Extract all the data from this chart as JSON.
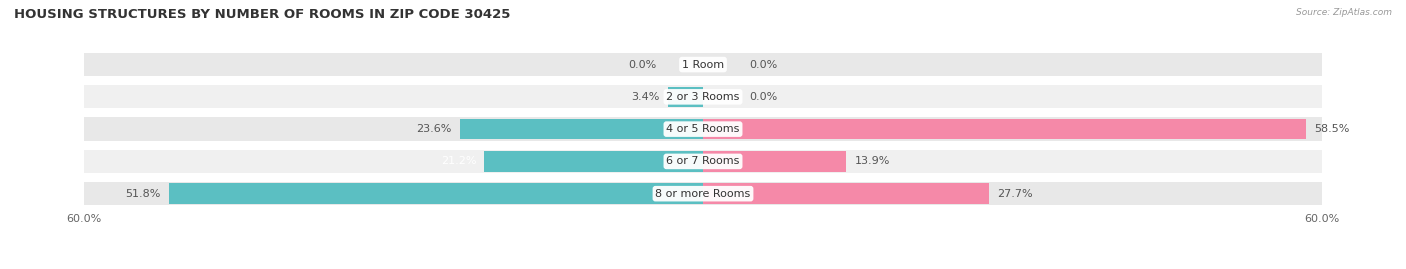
{
  "title": "HOUSING STRUCTURES BY NUMBER OF ROOMS IN ZIP CODE 30425",
  "source": "Source: ZipAtlas.com",
  "categories": [
    "1 Room",
    "2 or 3 Rooms",
    "4 or 5 Rooms",
    "6 or 7 Rooms",
    "8 or more Rooms"
  ],
  "owner_values": [
    0.0,
    3.4,
    23.6,
    21.2,
    51.8
  ],
  "renter_values": [
    0.0,
    0.0,
    58.5,
    13.9,
    27.7
  ],
  "axis_max": 60.0,
  "owner_color": "#5bbfc2",
  "renter_color": "#f589a8",
  "bar_bg_color": "#e8e8e8",
  "bar_bg_color2": "#f0f0f0",
  "title_fontsize": 9.5,
  "label_fontsize": 8,
  "tick_fontsize": 8,
  "category_fontsize": 8,
  "figsize": [
    14.06,
    2.69
  ],
  "dpi": 100
}
